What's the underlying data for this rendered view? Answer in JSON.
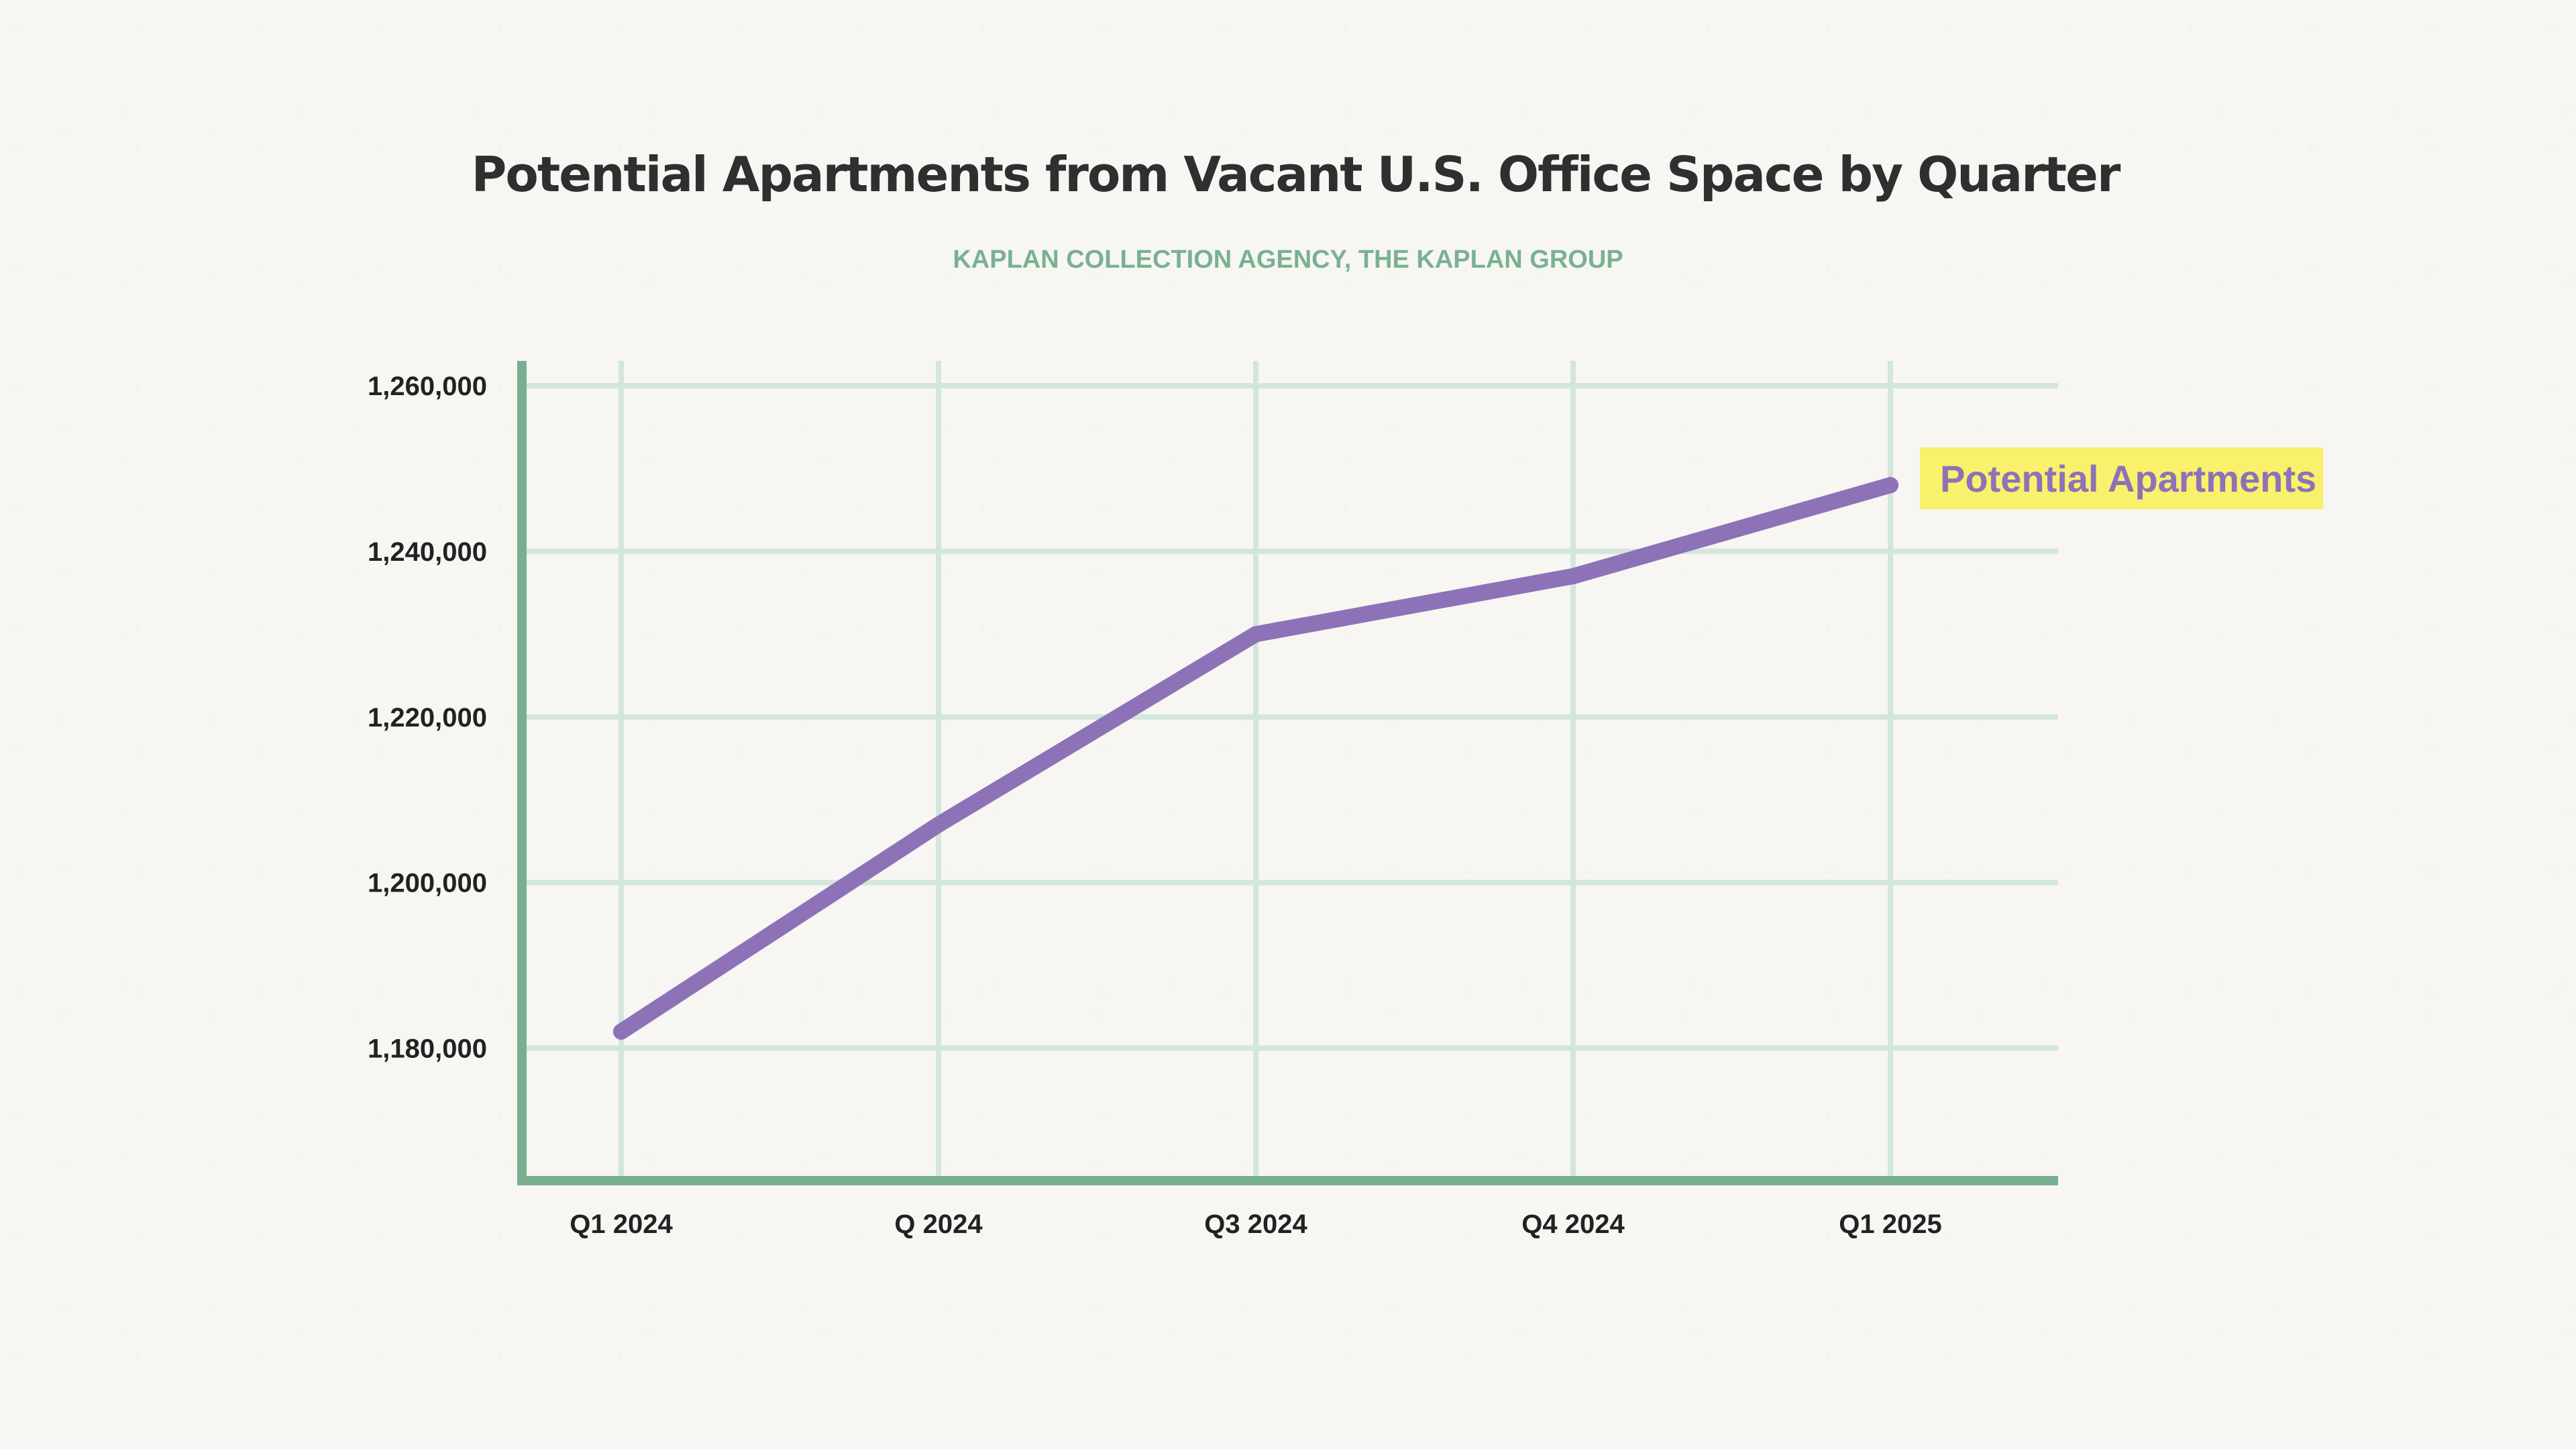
{
  "page": {
    "title": "Potential Apartments from Vacant U.S. Office Space by Quarter",
    "subtitle": "KAPLAN COLLECTION AGENCY, THE KAPLAN GROUP"
  },
  "colors": {
    "background": "#f7f6f2",
    "title": "#2f2f2f",
    "subtitle": "#79b191",
    "axis": "#7aae90",
    "grid": "#d3e6db",
    "line": "#8d72b8",
    "label_highlight": "#f9f06b",
    "tick_text": "#222222"
  },
  "chart_data": {
    "type": "line",
    "title": "Potential Apartments from Vacant U.S. Office Space by Quarter",
    "subtitle": "KAPLAN COLLECTION AGENCY, THE KAPLAN GROUP",
    "categories": [
      "Q1 2024",
      "Q 2024",
      "Q3 2024",
      "Q4 2024",
      "Q1 2025"
    ],
    "series": [
      {
        "name": "Potential Apartments",
        "values": [
          1182000,
          1207000,
          1230000,
          1237000,
          1248000
        ]
      }
    ],
    "ylim": [
      1164000,
      1263000
    ],
    "yticks": [
      1180000,
      1200000,
      1220000,
      1240000,
      1260000
    ],
    "ytick_labels": [
      "1,180,000",
      "1,200,000",
      "1,220,000",
      "1,240,000",
      "1,260,000"
    ],
    "xlabel": "",
    "ylabel": "",
    "grid": true,
    "legend": "direct label at line end, right"
  }
}
